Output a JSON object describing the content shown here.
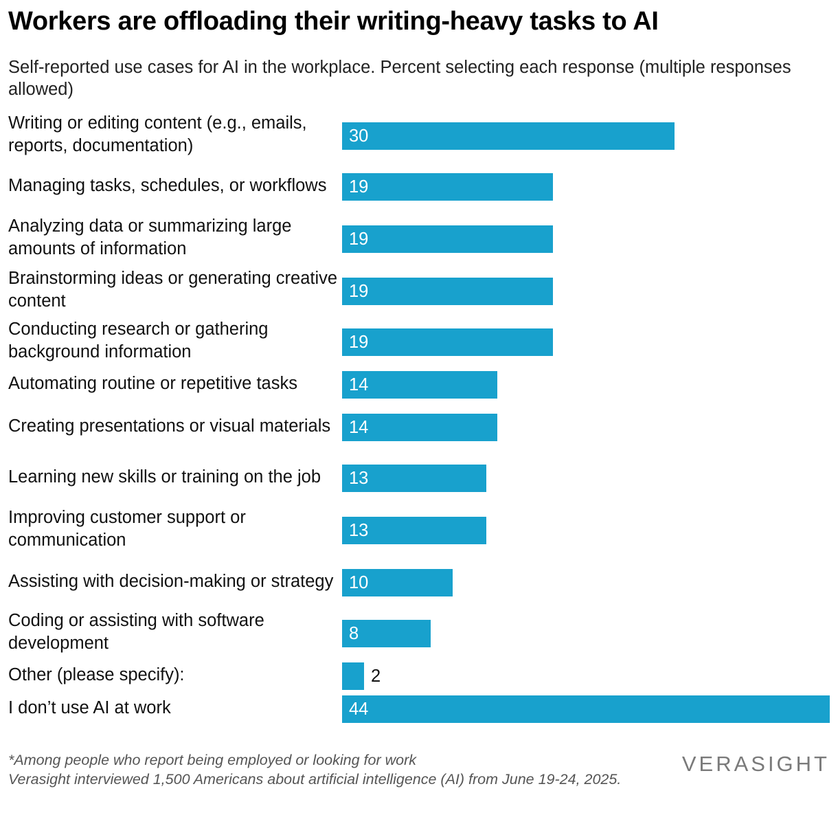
{
  "header": {
    "title": "Workers are offloading their writing-heavy tasks to AI",
    "subtitle": "Self-reported use cases for AI in the workplace. Percent selecting each response (multiple responses allowed)"
  },
  "chart_data": {
    "type": "bar",
    "orientation": "horizontal",
    "title": "Workers are offloading their writing-heavy tasks to AI",
    "subtitle": "Self-reported use cases for AI in the workplace. Percent selecting each response (multiple responses allowed)",
    "categories": [
      "Writing or editing content (e.g., emails, reports, documentation)",
      "Managing tasks, schedules, or workflows",
      "Analyzing data or summarizing large amounts of information",
      "Brainstorming ideas or generating creative content",
      "Conducting research or gathering background information",
      "Automating routine or repetitive tasks",
      "Creating presentations or visual materials",
      "Learning new skills or training on the job",
      "Improving customer support or communication",
      "Assisting with decision-making or strategy",
      "Coding or assisting with software development",
      "Other (please specify):",
      "I don’t use AI at work"
    ],
    "values": [
      30,
      19,
      19,
      19,
      19,
      14,
      14,
      13,
      13,
      10,
      8,
      2,
      44
    ],
    "xlim": [
      0,
      44
    ],
    "bar_color": "#18a1cd",
    "grid": false,
    "legend": "none"
  },
  "footer": {
    "note": "*Among people who report being employed or looking for work",
    "source": "Verasight interviewed 1,500 Americans about artificial intelligence (AI) from June 19-24, 2025.",
    "logo_text": "VERASIGHT"
  }
}
